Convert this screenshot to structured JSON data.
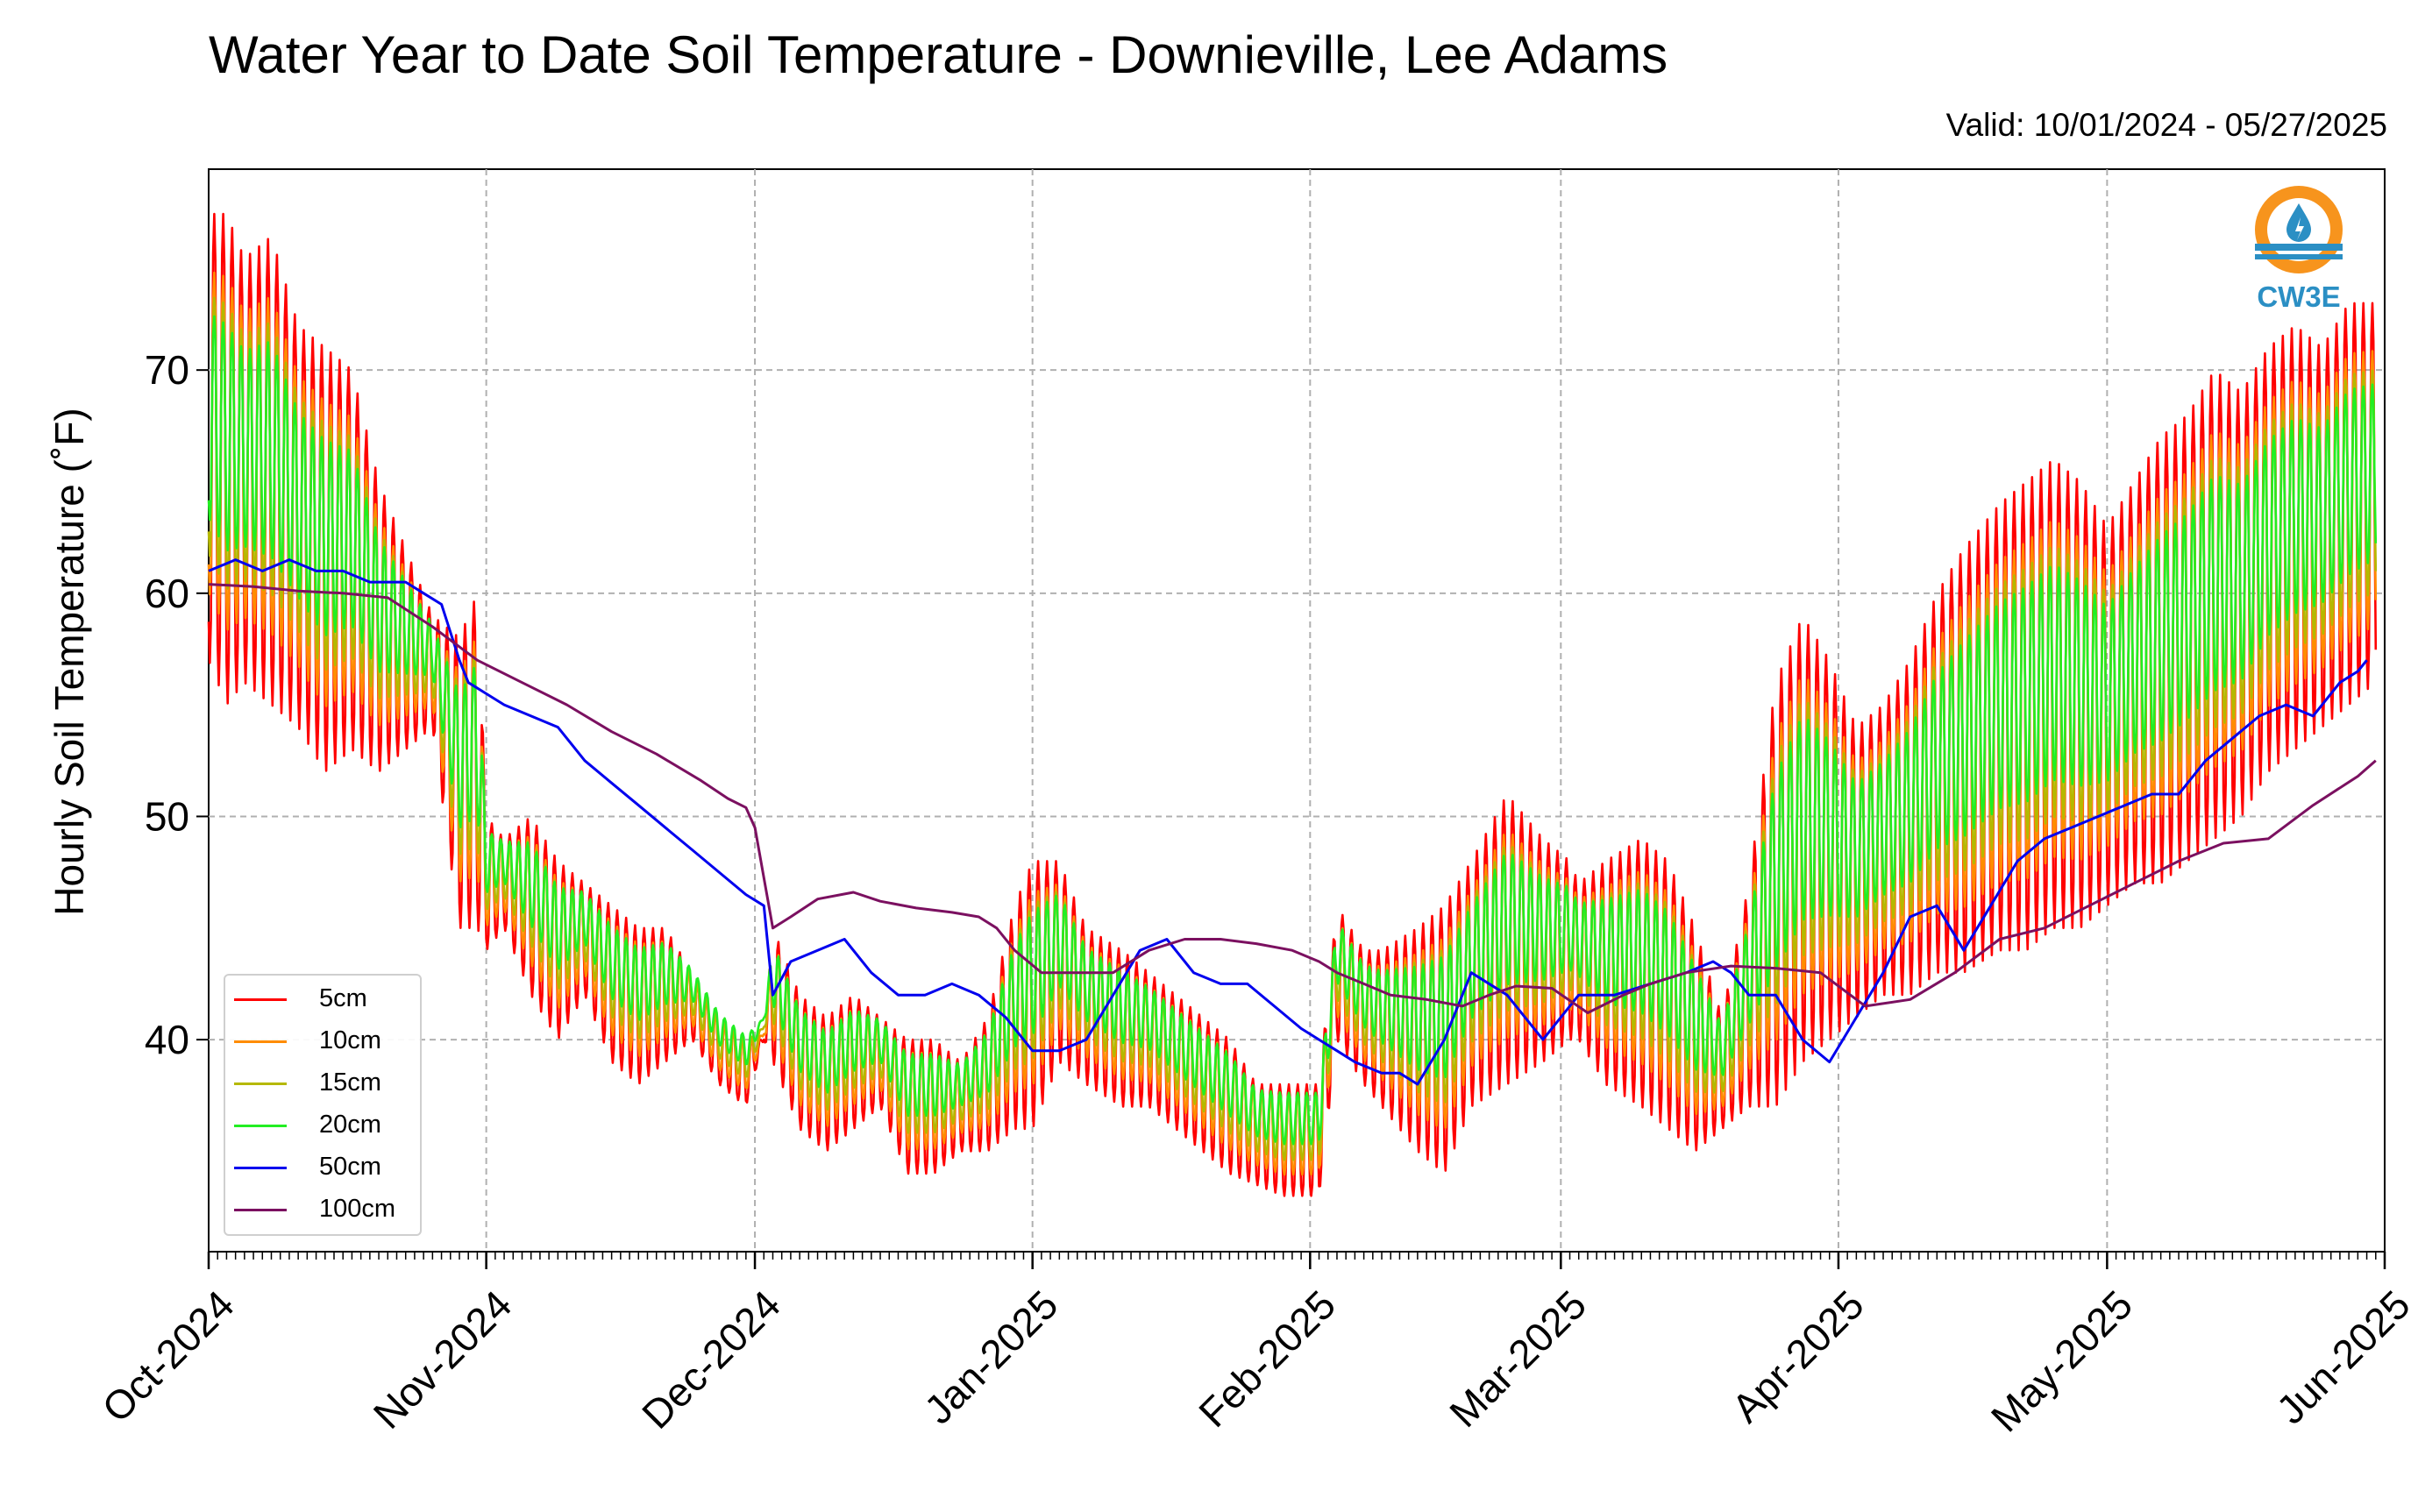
{
  "chart_data": {
    "type": "line",
    "title": "Water Year to Date Soil Temperature - Downieville, Lee Adams",
    "subtitle": "Valid: 10/01/2024 - 05/27/2025",
    "ylabel": "Hourly Soil Temperature (˚F)",
    "xlabel": "",
    "xlim": [
      "2024-10-01",
      "2025-06-01"
    ],
    "ylim": [
      30.5,
      79
    ],
    "x_ticks": [
      "Oct-2024",
      "Nov-2024",
      "Dec-2024",
      "Jan-2025",
      "Feb-2025",
      "Mar-2025",
      "Apr-2025",
      "May-2025",
      "Jun-2025"
    ],
    "y_ticks": [
      40,
      50,
      60,
      70
    ],
    "grid": true,
    "legend_position": "lower-left",
    "logo_text": "CW3E",
    "series_style": {
      "5cm": {
        "color": "#ff0000",
        "amp_scale": 1.0,
        "low_bias": 0.0
      },
      "10cm": {
        "color": "#ff8c00",
        "amp_scale": 0.72,
        "low_bias": 0.6
      },
      "15cm": {
        "color": "#b5b800",
        "amp_scale": 0.58,
        "low_bias": 0.9
      },
      "20cm": {
        "color": "#22ee22",
        "amp_scale": 0.46,
        "low_bias": 1.2
      }
    },
    "shallow_envelope": {
      "description_units": "x = day of water year from 2024-10-01, y = daily min and max of the 5cm sensor (deg F)",
      "x": [
        0,
        2,
        4,
        7,
        10,
        13,
        16,
        19,
        22,
        25,
        28,
        30,
        31,
        33,
        36,
        39,
        42,
        45,
        48,
        51,
        54,
        57,
        60,
        62,
        63,
        66,
        69,
        72,
        75,
        78,
        81,
        84,
        87,
        90,
        92,
        95,
        98,
        102,
        105,
        108,
        111,
        114,
        117,
        120,
        123,
        124,
        126,
        129,
        131,
        135,
        138,
        141,
        145,
        149,
        152,
        153,
        156,
        160,
        163,
        166,
        169,
        172,
        175,
        178,
        181,
        184,
        187,
        190,
        193,
        196,
        200,
        203,
        206,
        209,
        212,
        215,
        218,
        221,
        224,
        227,
        230,
        233,
        236,
        239,
        242
      ],
      "min": [
        57,
        55,
        56,
        55,
        54,
        52,
        53,
        52,
        53,
        54,
        45,
        45,
        44,
        45,
        42,
        40,
        42,
        39,
        38,
        39,
        40,
        38,
        37,
        40,
        39,
        36,
        35,
        36,
        37,
        34,
        34,
        35,
        35,
        36,
        36,
        39,
        38,
        37,
        37,
        36,
        35,
        34,
        33.5,
        33,
        33,
        33,
        40,
        38,
        37,
        35,
        34,
        37,
        38,
        39,
        40,
        40,
        38,
        37,
        36,
        35,
        36,
        37,
        37,
        39,
        40,
        41,
        42,
        42,
        43,
        43,
        44,
        44,
        45,
        45,
        46,
        47,
        47,
        48,
        49,
        50,
        52,
        53,
        54,
        55,
        56
      ],
      "max": [
        77,
        77,
        75,
        76,
        72,
        71,
        70,
        65,
        62,
        59,
        58,
        60,
        50,
        49,
        50,
        48,
        47,
        46,
        45,
        45,
        43,
        41,
        40,
        40,
        45,
        42,
        41,
        42,
        41,
        40,
        40,
        39,
        41,
        46,
        48,
        48,
        45,
        44,
        43,
        42,
        41,
        40,
        38,
        38,
        38,
        38,
        46,
        44,
        44,
        45,
        46,
        48,
        51,
        49,
        48,
        47,
        48,
        49,
        48,
        45,
        41,
        47,
        56,
        59,
        57,
        54,
        55,
        57,
        60,
        62,
        64,
        65,
        66,
        65,
        63,
        65,
        67,
        68,
        70,
        69,
        71,
        72,
        71,
        73,
        73
      ]
    },
    "series": [
      {
        "name": "5cm",
        "color": "#ff0000"
      },
      {
        "name": "10cm",
        "color": "#ff8c00"
      },
      {
        "name": "15cm",
        "color": "#b5b800"
      },
      {
        "name": "20cm",
        "color": "#22ee22"
      },
      {
        "name": "50cm",
        "color": "#0000ee",
        "x": [
          0,
          3,
          6,
          9,
          12,
          15,
          18,
          20,
          22,
          24,
          26,
          28,
          29,
          31,
          33,
          36,
          39,
          42,
          45,
          48,
          51,
          54,
          57,
          60,
          62,
          63,
          65,
          68,
          71,
          74,
          77,
          80,
          83,
          86,
          89,
          92,
          95,
          98,
          101,
          104,
          107,
          110,
          113,
          116,
          119,
          122,
          124,
          126,
          128,
          131,
          133,
          135,
          138,
          141,
          145,
          149,
          153,
          157,
          161,
          165,
          168,
          170,
          172,
          175,
          178,
          181,
          184,
          187,
          190,
          193,
          196,
          199,
          202,
          205,
          208,
          211,
          214,
          217,
          220,
          223,
          226,
          229,
          232,
          235,
          238,
          240,
          241
        ],
        "y": [
          61,
          61.5,
          61,
          61.5,
          61,
          61,
          60.5,
          60.5,
          60.5,
          60,
          59.5,
          57,
          56,
          55.5,
          55,
          54.5,
          54,
          52.5,
          51.5,
          50.5,
          49.5,
          48.5,
          47.5,
          46.5,
          46,
          42,
          43.5,
          44,
          44.5,
          43,
          42,
          42,
          42.5,
          42,
          41,
          39.5,
          39.5,
          40,
          42,
          44,
          44.5,
          43,
          42.5,
          42.5,
          41.5,
          40.5,
          40,
          39.5,
          39,
          38.5,
          38.5,
          38,
          40,
          43,
          42,
          40,
          42,
          42,
          42.5,
          43,
          43.5,
          43,
          42,
          42,
          40,
          39,
          41,
          43,
          45.5,
          46,
          44,
          46,
          48,
          49,
          49.5,
          50,
          50.5,
          51,
          51,
          52.5,
          53.5,
          54.5,
          55,
          54.5,
          56,
          56.5,
          57
        ]
      },
      {
        "name": "100cm",
        "color": "#7b1060",
        "x": [
          0,
          5,
          10,
          15,
          20,
          25,
          30,
          35,
          40,
          45,
          50,
          55,
          58,
          60,
          61,
          63,
          65,
          68,
          72,
          75,
          79,
          83,
          86,
          88,
          90,
          93,
          97,
          101,
          105,
          109,
          113,
          117,
          121,
          124,
          126,
          129,
          132,
          136,
          140,
          143,
          146,
          150,
          154,
          158,
          161,
          165,
          170,
          175,
          180,
          185,
          190,
          195,
          200,
          205,
          210,
          215,
          220,
          225,
          230,
          235,
          240,
          242
        ],
        "y": [
          60.4,
          60.3,
          60.1,
          60,
          59.8,
          58.5,
          57,
          56,
          55,
          53.8,
          52.8,
          51.6,
          50.8,
          50.4,
          49.5,
          45,
          45.5,
          46.3,
          46.6,
          46.2,
          45.9,
          45.7,
          45.5,
          45,
          44,
          43,
          43,
          43,
          44,
          44.5,
          44.5,
          44.3,
          44,
          43.5,
          43,
          42.5,
          42,
          41.8,
          41.5,
          42,
          42.4,
          42.3,
          41.2,
          42,
          42.5,
          43,
          43.3,
          43.2,
          43,
          41.5,
          41.8,
          43,
          44.5,
          45,
          46,
          47,
          48,
          48.8,
          49,
          50.5,
          51.8,
          52.5
        ]
      }
    ]
  }
}
